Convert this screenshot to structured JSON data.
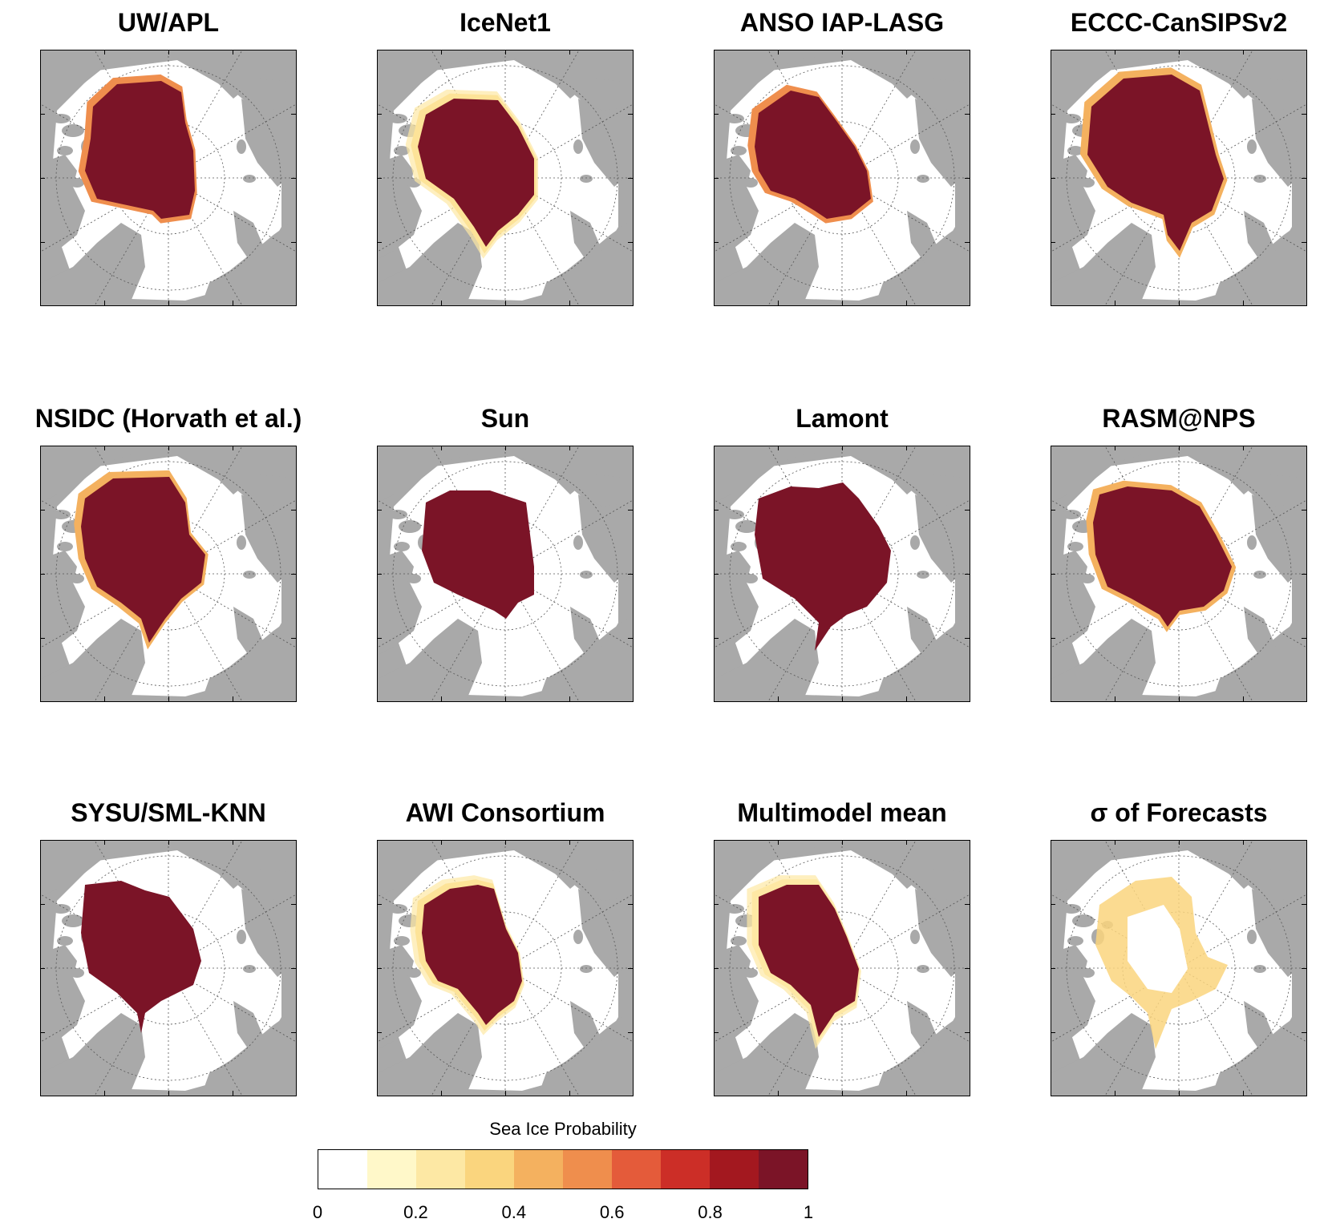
{
  "panels": [
    {
      "title": "UW/APL",
      "icon": "arctic-map"
    },
    {
      "title": "IceNet1",
      "icon": "arctic-map"
    },
    {
      "title": "ANSO IAP-LASG",
      "icon": "arctic-map"
    },
    {
      "title": "ECCC-CanSIPSv2",
      "icon": "arctic-map"
    },
    {
      "title": "NSIDC (Horvath et al.)",
      "icon": "arctic-map"
    },
    {
      "title": "Sun",
      "icon": "arctic-map"
    },
    {
      "title": "Lamont",
      "icon": "arctic-map"
    },
    {
      "title": "RASM@NPS",
      "icon": "arctic-map"
    },
    {
      "title": "SYSU/SML-KNN",
      "icon": "arctic-map"
    },
    {
      "title": "AWI Consortium",
      "icon": "arctic-map"
    },
    {
      "title": "Multimodel mean",
      "icon": "arctic-map"
    },
    {
      "title": "σ of Forecasts",
      "icon": "arctic-map"
    }
  ],
  "colorbar": {
    "title": "Sea Ice Probability",
    "ticks": [
      "0",
      "0.2",
      "0.4",
      "0.6",
      "0.8",
      "1"
    ],
    "colors": [
      "#ffffff",
      "#fff8c9",
      "#fde8a4",
      "#fad57e",
      "#f4b15f",
      "#ef8e4d",
      "#e45b3a",
      "#cc2e27",
      "#a3181f",
      "#7b1427"
    ]
  },
  "colors": {
    "land": "#a9a9a9",
    "ocean": "#ffffff",
    "ice_high": "#7b1427"
  }
}
